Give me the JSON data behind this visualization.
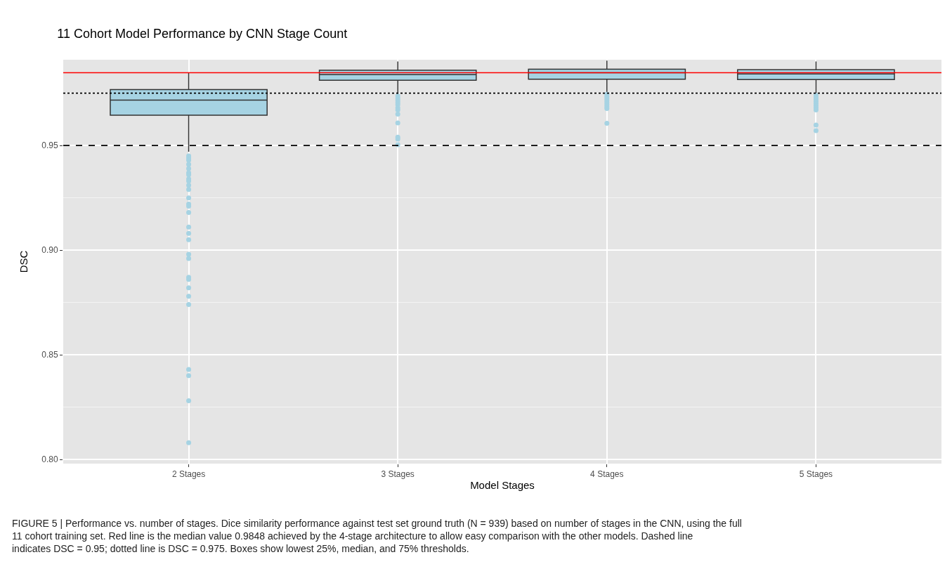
{
  "chart_data": {
    "type": "box",
    "title": "11 Cohort Model Performance by CNN Stage Count",
    "xlabel": "Model Stages",
    "ylabel": "DSC",
    "categories": [
      "2 Stages",
      "3 Stages",
      "4 Stages",
      "5 Stages"
    ],
    "color": "#a6d3e3",
    "boxes": [
      {
        "low": 0.947,
        "q1": 0.9645,
        "median": 0.9717,
        "q3": 0.9767,
        "high": 0.9848,
        "outliers": [
          0.945,
          0.944,
          0.943,
          0.941,
          0.939,
          0.937,
          0.936,
          0.934,
          0.933,
          0.931,
          0.929,
          0.925,
          0.922,
          0.921,
          0.918,
          0.911,
          0.908,
          0.905,
          0.898,
          0.896,
          0.887,
          0.886,
          0.882,
          0.878,
          0.874,
          0.843,
          0.84,
          0.828,
          0.808
        ]
      },
      {
        "low": 0.9744,
        "q1": 0.9812,
        "median": 0.9839,
        "q3": 0.986,
        "high": 0.9902,
        "outliers": [
          0.9736,
          0.9725,
          0.9715,
          0.9705,
          0.9695,
          0.968,
          0.967,
          0.965,
          0.9608,
          0.954,
          0.9531,
          0.9504
        ]
      },
      {
        "low": 0.9752,
        "q1": 0.9817,
        "median": 0.9848,
        "q3": 0.9865,
        "high": 0.9906,
        "outliers": [
          0.9745,
          0.9735,
          0.9725,
          0.9715,
          0.9705,
          0.9695,
          0.9685,
          0.9677,
          0.9606
        ]
      },
      {
        "low": 0.9747,
        "q1": 0.9815,
        "median": 0.9842,
        "q3": 0.9862,
        "high": 0.9902,
        "outliers": [
          0.974,
          0.973,
          0.972,
          0.971,
          0.97,
          0.969,
          0.968,
          0.967,
          0.9598,
          0.9571
        ]
      }
    ],
    "ylim": [
      0.798,
      0.991
    ],
    "yticks": [
      {
        "value": 0.8,
        "label": "0.80"
      },
      {
        "value": 0.85,
        "label": "0.85"
      },
      {
        "value": 0.9,
        "label": "0.90"
      },
      {
        "value": 0.95,
        "label": "0.95"
      }
    ],
    "grid": true,
    "ref_lines": [
      {
        "axis": "y",
        "value": 0.9848,
        "color": "#ff0000",
        "line_style": "solid"
      },
      {
        "axis": "y",
        "value": 0.975,
        "color": "#000000",
        "line_style": "dotted"
      },
      {
        "axis": "y",
        "value": 0.95,
        "color": "#000000",
        "line_style": "dashed"
      }
    ],
    "annotations": [
      "FIGURE 5 | Performance vs. number of stages. Dice similarity performance against test set ground truth (N = 939) based on number of stages in the CNN, using the full 11 cohort training set. Red line is the median value 0.9848 achieved by the 4-stage architecture to allow easy comparison with the other models. Dashed line indicates DSC = 0.95; dotted line is DSC = 0.975. Boxes show lowest 25%, median, and 75% thresholds."
    ]
  }
}
